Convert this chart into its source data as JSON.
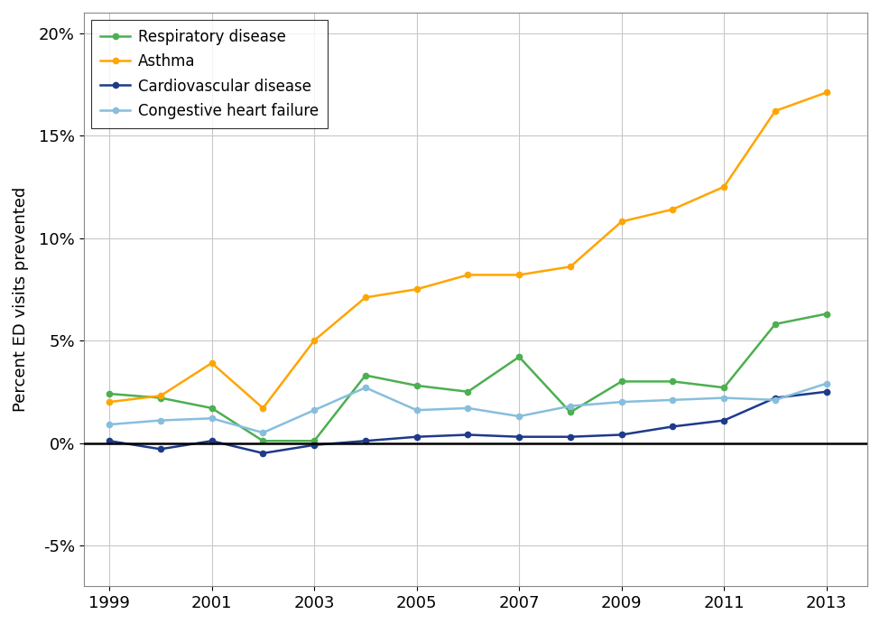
{
  "years": [
    1999,
    2000,
    2001,
    2002,
    2003,
    2004,
    2005,
    2006,
    2007,
    2008,
    2009,
    2010,
    2011,
    2012,
    2013
  ],
  "respiratory_disease": [
    2.4,
    2.2,
    1.7,
    0.1,
    0.1,
    3.3,
    2.8,
    2.5,
    4.2,
    1.5,
    3.0,
    3.0,
    2.7,
    5.8,
    6.3
  ],
  "asthma": [
    2.0,
    2.3,
    3.9,
    1.7,
    5.0,
    7.1,
    7.5,
    8.2,
    8.2,
    8.6,
    10.8,
    11.4,
    12.5,
    16.2,
    17.1
  ],
  "cardiovascular_disease": [
    0.1,
    -0.3,
    0.1,
    -0.5,
    -0.1,
    0.1,
    0.3,
    0.4,
    0.3,
    0.3,
    0.4,
    0.8,
    1.1,
    2.2,
    2.5
  ],
  "congestive_heart_failure": [
    0.9,
    1.1,
    1.2,
    0.5,
    1.6,
    2.7,
    1.6,
    1.7,
    1.3,
    1.8,
    2.0,
    2.1,
    2.2,
    2.1,
    2.9
  ],
  "colors": {
    "respiratory_disease": "#4CAF50",
    "asthma": "#FFA500",
    "cardiovascular_disease": "#1E3A8A",
    "congestive_heart_failure": "#87BEDE"
  },
  "labels": {
    "respiratory_disease": "Respiratory disease",
    "asthma": "Asthma",
    "cardiovascular_disease": "Cardiovascular disease",
    "congestive_heart_failure": "Congestive heart failure"
  },
  "ylabel": "Percent ED visits prevented",
  "ytick_labels": [
    "-5%",
    "0%",
    "5%",
    "10%",
    "15%",
    "20%"
  ],
  "ytick_vals": [
    -5,
    0,
    5,
    10,
    15,
    20
  ],
  "ylim": [
    -7,
    21
  ],
  "xlim": [
    1998.5,
    2013.8
  ],
  "xticks": [
    1999,
    2001,
    2003,
    2005,
    2007,
    2009,
    2011,
    2013
  ],
  "background_color": "#FFFFFF",
  "grid_color": "#C8C8C8"
}
